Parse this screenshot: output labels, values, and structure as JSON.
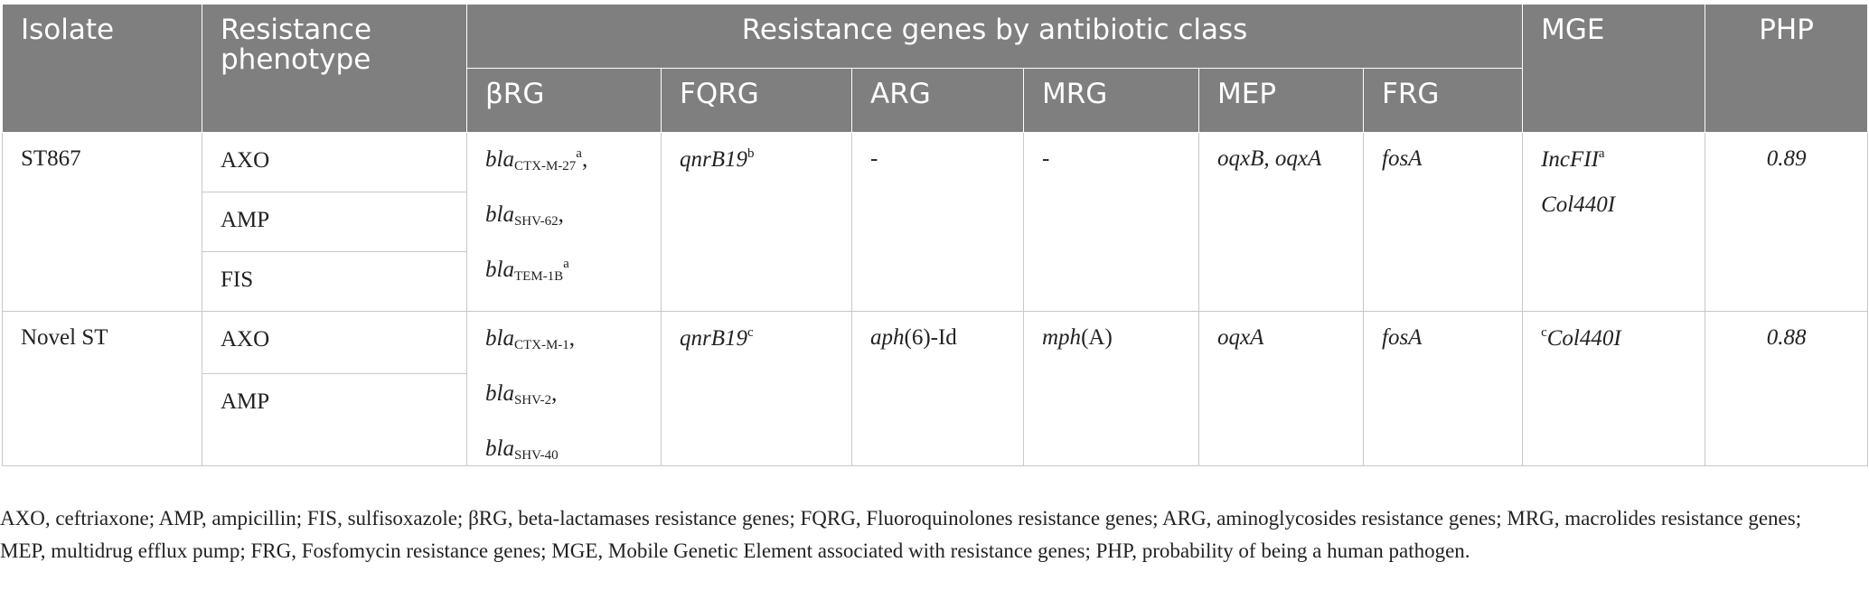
{
  "header": {
    "isolate": "Isolate",
    "phenotype_line1": "Resistance",
    "phenotype_line2": "phenotype",
    "genes_group": "Resistance genes by antibiotic class",
    "mge": "MGE",
    "php": "PHP",
    "subcolumns": [
      "βRG",
      "FQRG",
      "ARG",
      "MRG",
      "MEP",
      "FRG"
    ]
  },
  "rows": [
    {
      "isolate": "ST867",
      "phenotypes": [
        "AXO",
        "AMP",
        "FIS"
      ],
      "brg": [
        {
          "gene": "bla",
          "sub": "CTX-M-27",
          "sup": "a",
          "trail": ","
        },
        {
          "gene": "bla",
          "sub": "SHV-62",
          "sup": "",
          "trail": ","
        },
        {
          "gene": "bla",
          "sub": "TEM-1B",
          "sup": "a",
          "trail": ""
        }
      ],
      "fqrg": {
        "gene": "qnrB19",
        "sup": "b"
      },
      "arg": {
        "gene": "-",
        "suffix": ""
      },
      "mrg": {
        "gene": "-",
        "suffix": ""
      },
      "mep": "oqxB, oqxA",
      "frg": "fosA",
      "mge": [
        {
          "pre": "",
          "name": "IncFII",
          "sup": "a"
        },
        {
          "pre": "",
          "name": "Col440I",
          "sup": ""
        }
      ],
      "php": "0.89"
    },
    {
      "isolate": "Novel ST",
      "phenotypes": [
        "AXO",
        "AMP"
      ],
      "brg": [
        {
          "gene": "bla",
          "sub": "CTX-M-1",
          "sup": "",
          "trail": ","
        },
        {
          "gene": "bla",
          "sub": "SHV-2",
          "sup": "",
          "trail": ","
        },
        {
          "gene": "bla",
          "sub": "SHV-40",
          "sup": "",
          "trail": ""
        }
      ],
      "fqrg": {
        "gene": "qnrB19",
        "sup": "c"
      },
      "arg": {
        "gene": "aph",
        "suffix": "(6)-Id"
      },
      "mrg": {
        "gene": "mph",
        "suffix": "(A)"
      },
      "mep": "oqxA",
      "frg": "fosA",
      "mge": [
        {
          "pre": "c",
          "name": "Col440I",
          "sup": ""
        }
      ],
      "php": "0.88"
    }
  ],
  "footnote": "AXO, ceftriaxone; AMP, ampicillin; FIS, sulfisoxazole; βRG, beta-lactamases resistance genes; FQRG, Fluoroquinolones resistance genes; ARG, aminoglycosides resistance genes; MRG, macrolides resistance genes; MEP, multidrug efflux pump; FRG, Fosfomycin resistance genes; MGE, Mobile Genetic Element associated with resistance genes; PHP, probability of being a human pathogen."
}
